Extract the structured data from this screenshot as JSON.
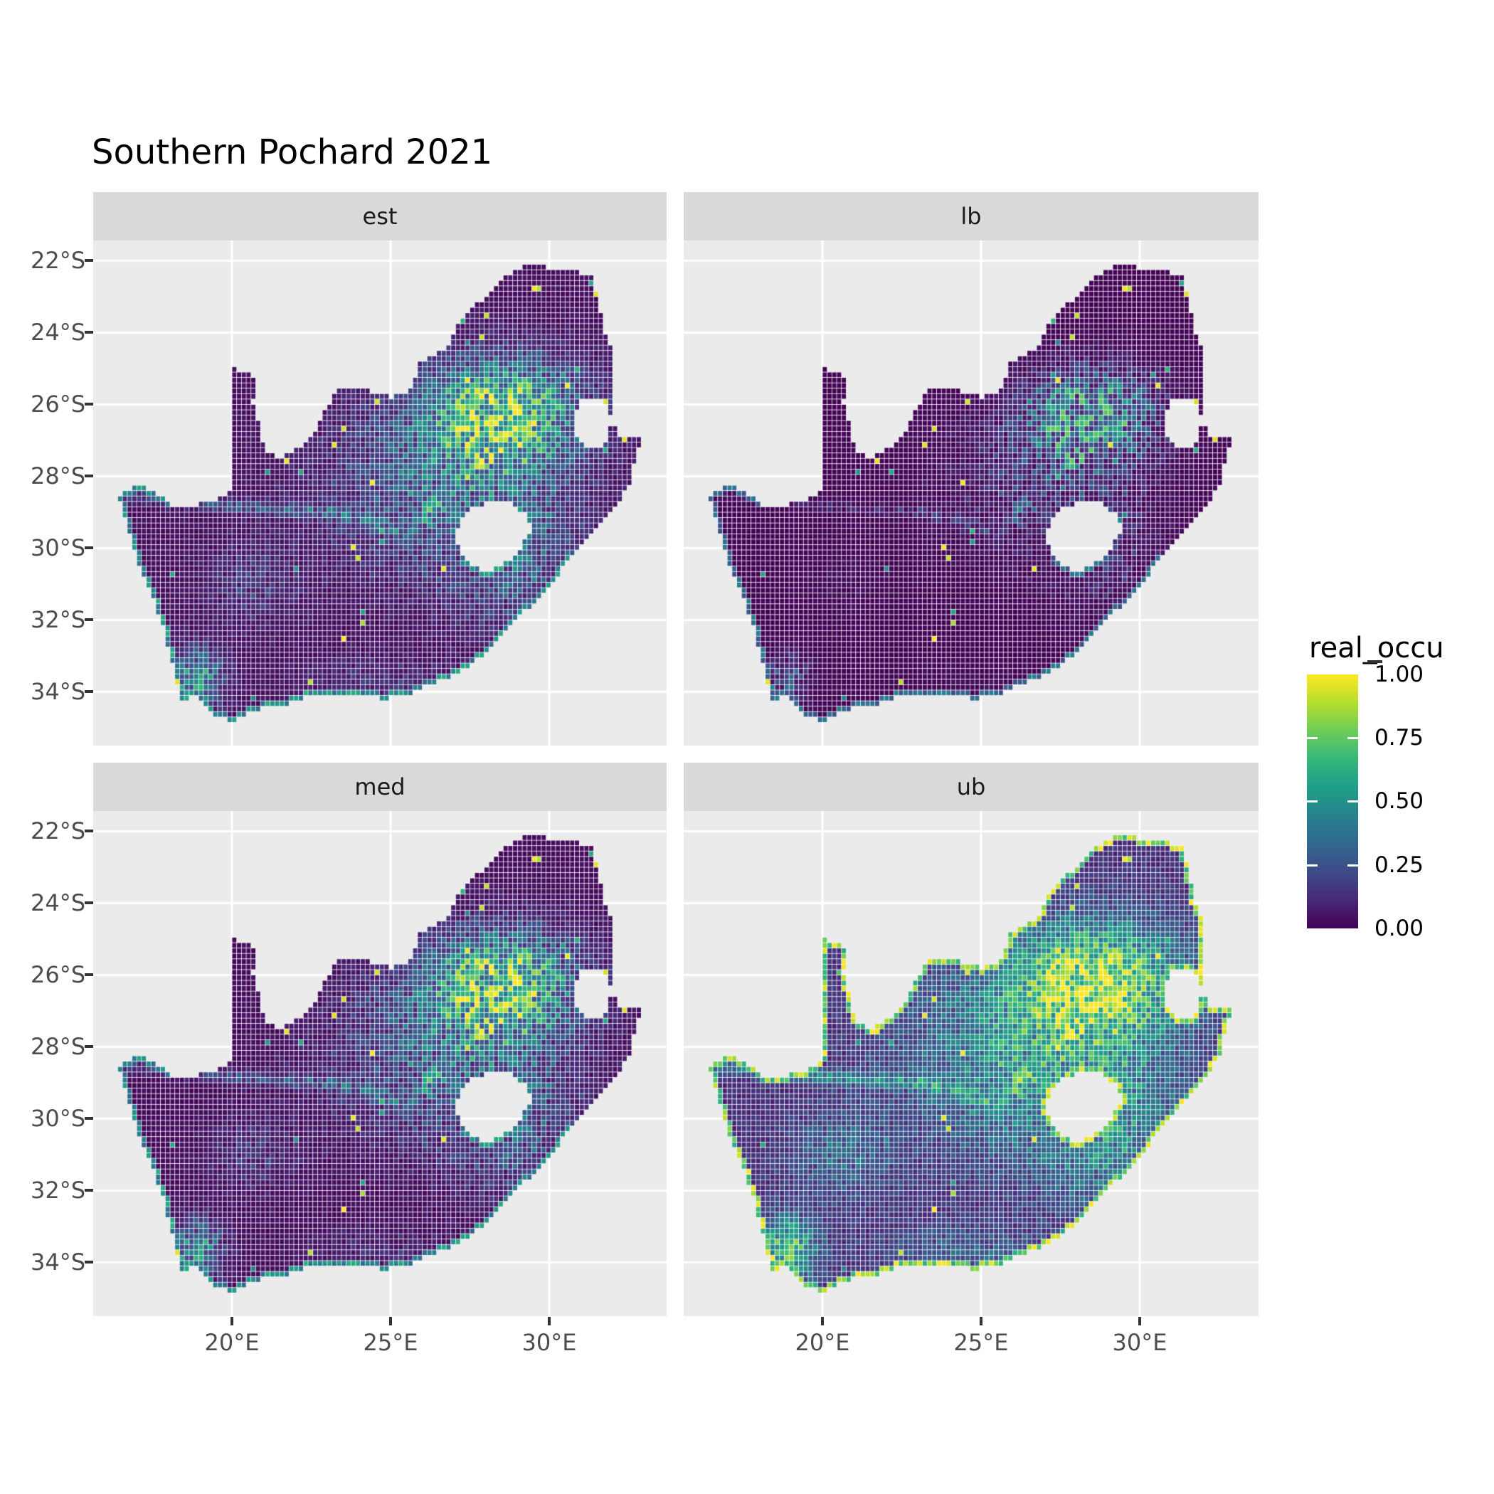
{
  "title": "Southern Pochard 2021",
  "colors": {
    "background": "#FFFFFF",
    "panel_bg": "#EBEBEB",
    "strip_bg": "#D9D9D9",
    "grid": "#FFFFFF",
    "axis_text": "#4D4D4D",
    "tick_mark": "#333333",
    "strip_text": "#1A1A1A",
    "title_text": "#000000"
  },
  "chart_data": {
    "type": "heatmap",
    "subtype": "faceted-occupancy-raster-map",
    "region": "South Africa",
    "title": "Southern Pochard 2021",
    "variable": "real_occu",
    "facets": [
      {
        "label": "est"
      },
      {
        "label": "lb"
      },
      {
        "label": "med"
      },
      {
        "label": "ub"
      }
    ],
    "x_axis": {
      "tick_labels": [
        "20°E",
        "25°E",
        "30°E"
      ],
      "tick_values": [
        20,
        25,
        30
      ],
      "range_lon": [
        15.63,
        33.7
      ]
    },
    "y_axis": {
      "tick_labels": [
        "22°S",
        "24°S",
        "26°S",
        "28°S",
        "30°S",
        "32°S",
        "34°S"
      ],
      "tick_values": [
        -22,
        -24,
        -26,
        -28,
        -30,
        -32,
        -34
      ],
      "range_lat": [
        -35.5,
        -21.44
      ]
    },
    "legend": {
      "title": "real_occu",
      "tick_labels": [
        "1.00",
        "0.75",
        "0.50",
        "0.25",
        "0.00"
      ],
      "tick_values": [
        1.0,
        0.75,
        0.5,
        0.25,
        0.0
      ]
    },
    "palette": {
      "name": "viridis",
      "stops": [
        "#440154",
        "#482878",
        "#3E4A89",
        "#31688E",
        "#26828E",
        "#1F9E89",
        "#35B779",
        "#6DCD59",
        "#B4DE2C",
        "#FDE725"
      ]
    },
    "raster": {
      "cell_size_deg": 0.15,
      "base_level": 0.045,
      "noise": {
        "mult_min": 0.3,
        "mult_span": 0.78,
        "gamma": 1.25
      },
      "spikes": {
        "yellow_rate": 0.0048,
        "teal_rate": 0.0048
      },
      "hotspots": [
        {
          "cx": 28.55,
          "cy": -26.25,
          "sx": 2.3,
          "sy": 1.45,
          "w": 1.0,
          "mod": 0
        },
        {
          "cx": 26.8,
          "cy": -28.3,
          "sx": 3.6,
          "sy": 2.4,
          "w": 0.55,
          "mod": 1
        },
        {
          "cx": 29.2,
          "cy": -30.6,
          "sx": 2.0,
          "sy": 1.7,
          "w": 0.38,
          "mod": 1
        },
        {
          "cx": 18.9,
          "cy": -33.65,
          "sx": 0.8,
          "sy": 0.8,
          "w": 0.75,
          "mod": 0
        },
        {
          "cx": 20.6,
          "cy": -31.0,
          "sx": 1.5,
          "sy": 1.2,
          "w": 0.22,
          "mod": 1
        },
        {
          "cx": 24.5,
          "cy": -33.7,
          "sx": 2.5,
          "sy": 0.7,
          "w": 0.18,
          "mod": 1
        }
      ],
      "rivers": {
        "weight": 0.3,
        "sigma_deg": 0.18,
        "polylines": [
          [
            [
              16.6,
              -28.5
            ],
            [
              18.4,
              -28.7
            ],
            [
              20.0,
              -28.8
            ],
            [
              21.5,
              -28.9
            ],
            [
              23.2,
              -29.0
            ],
            [
              24.4,
              -29.3
            ],
            [
              25.6,
              -29.6
            ]
          ],
          [
            [
              25.6,
              -29.6
            ],
            [
              26.6,
              -28.6
            ],
            [
              27.6,
              -27.7
            ],
            [
              28.6,
              -26.9
            ]
          ]
        ]
      },
      "facet_transforms": {
        "est": {
          "gain": 1.0,
          "gamma": 1.0,
          "coast_lo": 0.32,
          "coast_hi": 0.62,
          "coast_all": false
        },
        "lb": {
          "gain": 0.85,
          "gamma": 1.75,
          "coast_lo": 0.22,
          "coast_hi": 0.45,
          "coast_all": false
        },
        "med": {
          "gain": 1.0,
          "gamma": 1.08,
          "coast_lo": 0.32,
          "coast_hi": 0.62,
          "coast_all": false
        },
        "ub": {
          "gain": 1.12,
          "gamma": 0.6,
          "coast_lo": 0.6,
          "coast_hi": 1.0,
          "coast_all": true
        }
      }
    },
    "geometry": {
      "outer": [
        [
          16.45,
          -28.58
        ],
        [
          17.1,
          -28.18
        ],
        [
          17.55,
          -28.45
        ],
        [
          18.1,
          -28.8
        ],
        [
          18.8,
          -28.82
        ],
        [
          19.4,
          -28.68
        ],
        [
          19.98,
          -28.43
        ],
        [
          19.98,
          -24.95
        ],
        [
          20.8,
          -25.25
        ],
        [
          20.65,
          -25.9
        ],
        [
          20.85,
          -26.6
        ],
        [
          21.05,
          -27.35
        ],
        [
          21.55,
          -27.5
        ],
        [
          22.15,
          -27.15
        ],
        [
          22.6,
          -26.75
        ],
        [
          23.0,
          -26.1
        ],
        [
          23.4,
          -25.5
        ],
        [
          24.2,
          -25.6
        ],
        [
          25.0,
          -25.8
        ],
        [
          25.65,
          -25.6
        ],
        [
          25.95,
          -24.78
        ],
        [
          26.45,
          -24.6
        ],
        [
          26.9,
          -24.28
        ],
        [
          27.2,
          -23.6
        ],
        [
          27.95,
          -23.02
        ],
        [
          28.35,
          -22.6
        ],
        [
          29.05,
          -22.18
        ],
        [
          29.7,
          -22.14
        ],
        [
          30.6,
          -22.3
        ],
        [
          31.3,
          -22.35
        ],
        [
          31.56,
          -23.2
        ],
        [
          31.72,
          -23.98
        ],
        [
          31.96,
          -24.42
        ],
        [
          32.02,
          -25.1
        ],
        [
          31.94,
          -25.96
        ],
        [
          32.06,
          -26.4
        ],
        [
          32.1,
          -26.86
        ],
        [
          32.9,
          -26.86
        ],
        [
          32.52,
          -28.25
        ],
        [
          32.1,
          -28.85
        ],
        [
          31.4,
          -29.5
        ],
        [
          30.7,
          -30.25
        ],
        [
          30.05,
          -30.98
        ],
        [
          29.3,
          -31.7
        ],
        [
          28.55,
          -32.35
        ],
        [
          27.85,
          -33.0
        ],
        [
          27.05,
          -33.52
        ],
        [
          26.3,
          -33.76
        ],
        [
          25.65,
          -34.02
        ],
        [
          24.85,
          -34.2
        ],
        [
          24.05,
          -34.12
        ],
        [
          23.3,
          -34.1
        ],
        [
          22.45,
          -34.06
        ],
        [
          21.7,
          -34.38
        ],
        [
          20.85,
          -34.47
        ],
        [
          20.0,
          -34.82
        ],
        [
          19.45,
          -34.62
        ],
        [
          19.1,
          -34.38
        ],
        [
          18.78,
          -34.08
        ],
        [
          18.43,
          -34.33
        ],
        [
          18.3,
          -33.88
        ],
        [
          18.2,
          -33.35
        ],
        [
          17.95,
          -32.75
        ],
        [
          17.8,
          -32.1
        ],
        [
          17.55,
          -31.5
        ],
        [
          17.2,
          -30.8
        ],
        [
          16.95,
          -30.1
        ],
        [
          16.72,
          -29.4
        ]
      ],
      "holes": {
        "lesotho": [
          [
            27.02,
            -29.58
          ],
          [
            27.4,
            -29.0
          ],
          [
            27.75,
            -28.85
          ],
          [
            28.2,
            -28.68
          ],
          [
            28.8,
            -28.75
          ],
          [
            29.25,
            -29.05
          ],
          [
            29.45,
            -29.4
          ],
          [
            29.15,
            -29.95
          ],
          [
            28.7,
            -30.35
          ],
          [
            28.15,
            -30.65
          ],
          [
            27.6,
            -30.55
          ],
          [
            27.25,
            -30.15
          ]
        ],
        "eswatini": [
          [
            31.05,
            -25.8
          ],
          [
            31.8,
            -25.95
          ],
          [
            31.97,
            -26.45
          ],
          [
            31.8,
            -27.05
          ],
          [
            31.3,
            -27.28
          ],
          [
            30.9,
            -27.0
          ],
          [
            30.8,
            -26.35
          ]
        ]
      }
    }
  }
}
